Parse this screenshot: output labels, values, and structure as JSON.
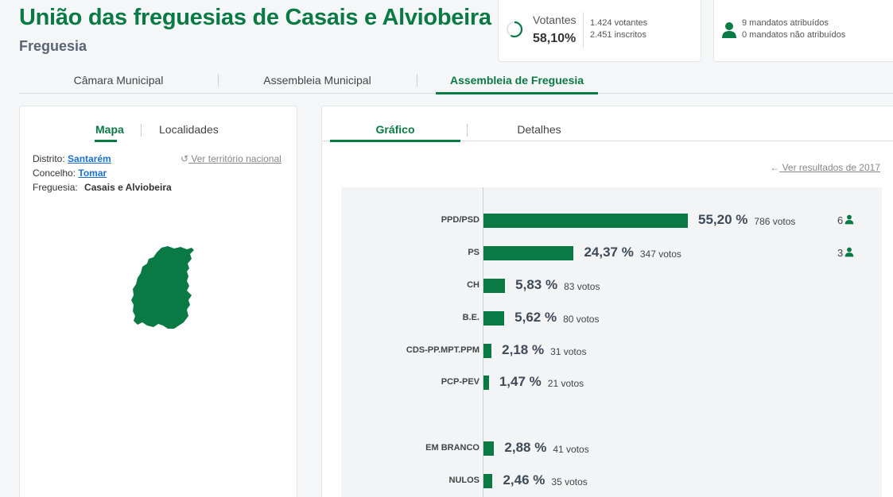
{
  "header": {
    "title": "União das freguesias de Casais e Alviobeira",
    "subtitle": "Freguesia"
  },
  "votantes": {
    "label": "Votantes",
    "pct": "58,10%",
    "fraction": 0.581,
    "votantes": "1.424 votantes",
    "inscritos": "2.451 inscritos",
    "accent": "#0a7a45"
  },
  "mandatos": {
    "atribuidos": "9 mandatos atribuídos",
    "nao_atribuidos": "0 mandatos não atribuídos",
    "icon": "person-icon"
  },
  "tabs": [
    {
      "label": "Câmara Municipal"
    },
    {
      "label": "Assembleia Municipal"
    },
    {
      "label": "Assembleia de Freguesia"
    }
  ],
  "left": {
    "tabs": [
      {
        "label": "Mapa"
      },
      {
        "label": "Localidades"
      }
    ],
    "distrito_label": "Distrito:",
    "distrito": "Santarém",
    "concelho_label": "Concelho:",
    "concelho": "Tomar",
    "freguesia_label": "Freguesia:",
    "freguesia": "Casais e Alviobeira",
    "national_link": "Ver território nacional",
    "map_color": "#0a7a45"
  },
  "right": {
    "tabs": [
      {
        "label": "Gráfico"
      },
      {
        "label": "Detalhes"
      }
    ],
    "previous_link": "Ver resultados de 2017"
  },
  "chart_data": {
    "type": "bar",
    "orientation": "horizontal",
    "categories": [
      "PPD/PSD",
      "PS",
      "CH",
      "B.E.",
      "CDS-PP.MPT.PPM",
      "PCP-PEV",
      "EM BRANCO",
      "NULOS"
    ],
    "values": [
      55.2,
      24.37,
      5.83,
      5.62,
      2.18,
      1.47,
      2.88,
      2.46
    ],
    "value_labels": [
      "55,20 %",
      "24,37 %",
      "5,83 %",
      "5,62 %",
      "2,18 %",
      "1,47 %",
      "2,88 %",
      "2,46 %"
    ],
    "votes": [
      "786 votos",
      "347 votos",
      "83 votos",
      "80 votos",
      "31 votos",
      "21 votos",
      "41 votos",
      "35 votos"
    ],
    "seats": [
      "6",
      "3",
      "",
      "",
      "",
      "",
      "",
      ""
    ],
    "color": "#0a7a45"
  }
}
